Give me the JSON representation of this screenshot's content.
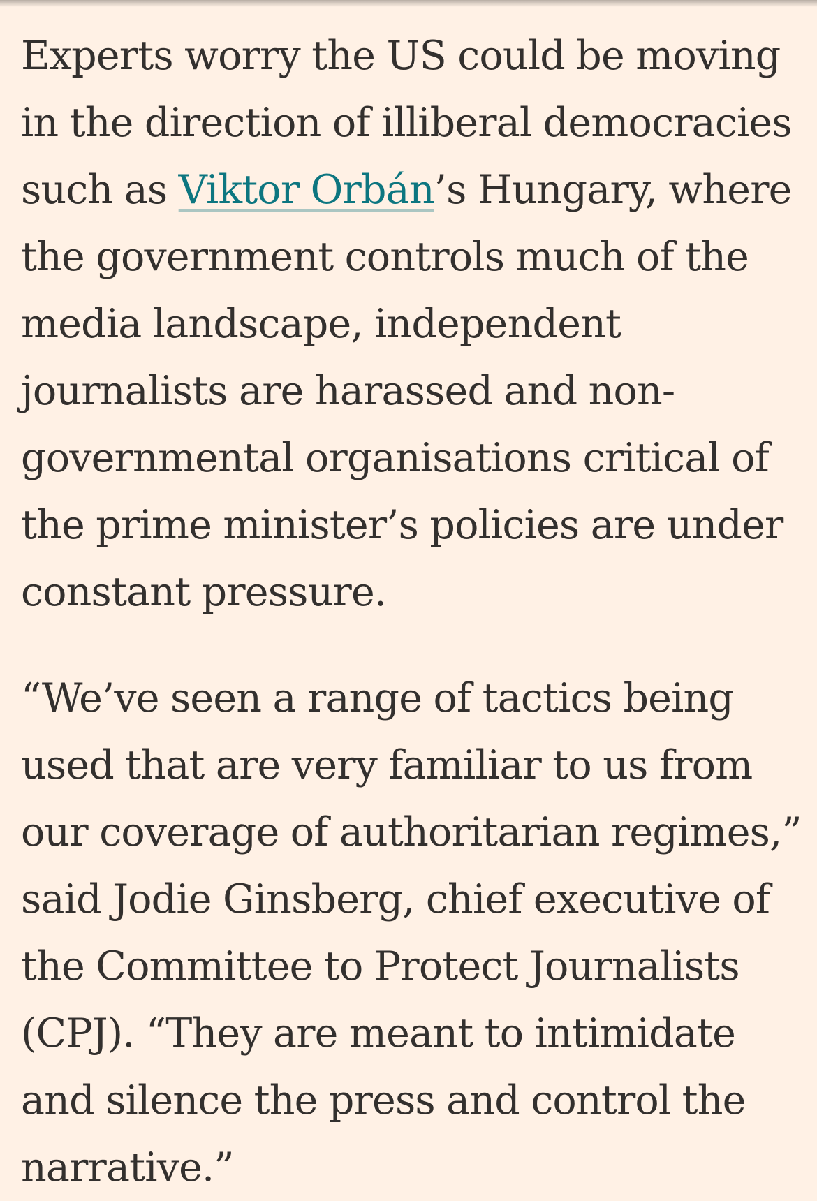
{
  "article": {
    "paragraph_1": {
      "before_link": "Experts worry the US could be moving in the direction of illiberal democracies such as ",
      "link_text": "Viktor Orbán",
      "after_link": "’s Hungary, where the government controls much of the media landscape, independent journalists are harassed and non-governmental organisations critical of the prime minister’s policies are under constant pressure."
    },
    "paragraph_2": "“We’ve seen a range of tactics being used that are very familiar to us from our coverage of authoritarian regimes,” said Jodie Ginsberg, chief executive of the Committee to Protect Journalists (CPJ). “They are meant to intimidate and silence the press and control the narrative.”"
  },
  "colors": {
    "background": "#fff1e5",
    "text": "#33302e",
    "link": "#0d7680"
  }
}
